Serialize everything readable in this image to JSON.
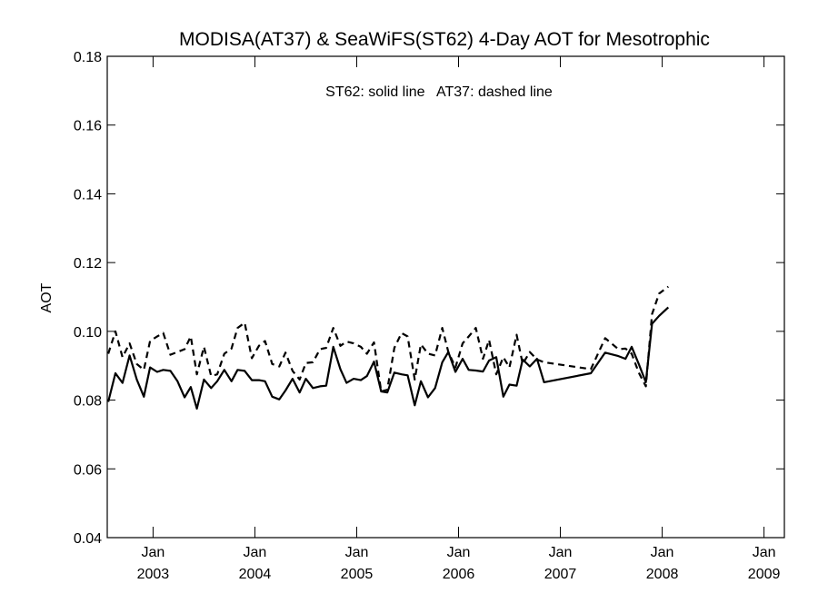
{
  "chart_data": {
    "type": "line",
    "title": "MODISA(AT37) & SeaWiFS(ST62) 4-Day AOT for Mesotrophic",
    "annotation": "ST62: solid line   AT37: dashed line",
    "xlabel": "",
    "ylabel": "AOT",
    "xlim": [
      2002.55,
      2009.2
    ],
    "ylim": [
      0.04,
      0.18
    ],
    "yticks": [
      0.04,
      0.06,
      0.08,
      0.1,
      0.12,
      0.14,
      0.16,
      0.18
    ],
    "ytick_labels": [
      "0.04",
      "0.06",
      "0.08",
      "0.10",
      "0.12",
      "0.14",
      "0.16",
      "0.18"
    ],
    "xticks": [
      {
        "value": 2003.0,
        "month": "Jan",
        "year": "2003"
      },
      {
        "value": 2004.0,
        "month": "Jan",
        "year": "2004"
      },
      {
        "value": 2005.0,
        "month": "Jan",
        "year": "2005"
      },
      {
        "value": 2006.0,
        "month": "Jan",
        "year": "2006"
      },
      {
        "value": 2007.0,
        "month": "Jan",
        "year": "2007"
      },
      {
        "value": 2008.0,
        "month": "Jan",
        "year": "2008"
      },
      {
        "value": 2009.0,
        "month": "Jan",
        "year": "2009"
      }
    ],
    "grid": false,
    "series": [
      {
        "name": "ST62",
        "style": "solid",
        "color": "#000000",
        "points": [
          [
            2002.56,
            0.0795
          ],
          [
            2002.63,
            0.0878
          ],
          [
            2002.7,
            0.085
          ],
          [
            2002.77,
            0.093
          ],
          [
            2002.84,
            0.086
          ],
          [
            2002.91,
            0.081
          ],
          [
            2002.97,
            0.0895
          ],
          [
            2003.04,
            0.0882
          ],
          [
            2003.1,
            0.0888
          ],
          [
            2003.17,
            0.0885
          ],
          [
            2003.24,
            0.0855
          ],
          [
            2003.31,
            0.0808
          ],
          [
            2003.37,
            0.0838
          ],
          [
            2003.43,
            0.0775
          ],
          [
            2003.5,
            0.086
          ],
          [
            2003.57,
            0.0835
          ],
          [
            2003.63,
            0.0855
          ],
          [
            2003.7,
            0.0888
          ],
          [
            2003.77,
            0.0855
          ],
          [
            2003.83,
            0.0888
          ],
          [
            2003.9,
            0.0885
          ],
          [
            2003.97,
            0.0858
          ],
          [
            2004.04,
            0.0858
          ],
          [
            2004.1,
            0.0855
          ],
          [
            2004.17,
            0.081
          ],
          [
            2004.24,
            0.0802
          ],
          [
            2004.3,
            0.0828
          ],
          [
            2004.37,
            0.0862
          ],
          [
            2004.44,
            0.0822
          ],
          [
            2004.5,
            0.0862
          ],
          [
            2004.57,
            0.0835
          ],
          [
            2004.64,
            0.084
          ],
          [
            2004.7,
            0.0842
          ],
          [
            2004.77,
            0.0955
          ],
          [
            2004.84,
            0.089
          ],
          [
            2004.9,
            0.085
          ],
          [
            2004.97,
            0.0862
          ],
          [
            2005.04,
            0.0858
          ],
          [
            2005.1,
            0.087
          ],
          [
            2005.17,
            0.0912
          ],
          [
            2005.24,
            0.0825
          ],
          [
            2005.3,
            0.0822
          ],
          [
            2005.37,
            0.088
          ],
          [
            2005.44,
            0.0875
          ],
          [
            2005.5,
            0.0872
          ],
          [
            2005.57,
            0.0785
          ],
          [
            2005.63,
            0.0855
          ],
          [
            2005.7,
            0.0808
          ],
          [
            2005.77,
            0.0835
          ],
          [
            2005.84,
            0.091
          ],
          [
            2005.9,
            0.094
          ],
          [
            2005.97,
            0.0882
          ],
          [
            2006.04,
            0.092
          ],
          [
            2006.1,
            0.0888
          ],
          [
            2006.17,
            0.0886
          ],
          [
            2006.24,
            0.0883
          ],
          [
            2006.3,
            0.0915
          ],
          [
            2006.37,
            0.0925
          ],
          [
            2006.44,
            0.081
          ],
          [
            2006.5,
            0.0845
          ],
          [
            2006.57,
            0.0842
          ],
          [
            2006.63,
            0.0918
          ],
          [
            2006.7,
            0.0898
          ],
          [
            2006.77,
            0.092
          ],
          [
            2006.84,
            0.0852
          ],
          [
            2007.3,
            0.0878
          ],
          [
            2007.44,
            0.0938
          ],
          [
            2007.57,
            0.0928
          ],
          [
            2007.64,
            0.092
          ],
          [
            2007.7,
            0.0955
          ],
          [
            2007.77,
            0.0905
          ],
          [
            2007.84,
            0.0852
          ],
          [
            2007.9,
            0.1022
          ],
          [
            2007.97,
            0.1045
          ],
          [
            2008.06,
            0.107
          ]
        ]
      },
      {
        "name": "AT37",
        "style": "dashed",
        "color": "#000000",
        "points": [
          [
            2002.56,
            0.0935
          ],
          [
            2002.63,
            0.1
          ],
          [
            2002.7,
            0.0925
          ],
          [
            2002.77,
            0.0965
          ],
          [
            2002.84,
            0.0905
          ],
          [
            2002.91,
            0.0888
          ],
          [
            2002.97,
            0.0972
          ],
          [
            2003.04,
            0.0985
          ],
          [
            2003.1,
            0.0995
          ],
          [
            2003.17,
            0.0932
          ],
          [
            2003.24,
            0.094
          ],
          [
            2003.31,
            0.0948
          ],
          [
            2003.37,
            0.0985
          ],
          [
            2003.43,
            0.0875
          ],
          [
            2003.5,
            0.0955
          ],
          [
            2003.57,
            0.087
          ],
          [
            2003.63,
            0.0875
          ],
          [
            2003.7,
            0.0935
          ],
          [
            2003.77,
            0.095
          ],
          [
            2003.83,
            0.101
          ],
          [
            2003.9,
            0.1025
          ],
          [
            2003.97,
            0.0922
          ],
          [
            2004.04,
            0.0958
          ],
          [
            2004.1,
            0.0972
          ],
          [
            2004.17,
            0.0905
          ],
          [
            2004.24,
            0.0898
          ],
          [
            2004.3,
            0.0938
          ],
          [
            2004.37,
            0.0885
          ],
          [
            2004.44,
            0.086
          ],
          [
            2004.5,
            0.0908
          ],
          [
            2004.57,
            0.091
          ],
          [
            2004.64,
            0.0948
          ],
          [
            2004.7,
            0.0952
          ],
          [
            2004.77,
            0.101
          ],
          [
            2004.84,
            0.0958
          ],
          [
            2004.9,
            0.097
          ],
          [
            2004.97,
            0.0965
          ],
          [
            2005.04,
            0.0955
          ],
          [
            2005.1,
            0.0935
          ],
          [
            2005.17,
            0.0968
          ],
          [
            2005.24,
            0.0825
          ],
          [
            2005.3,
            0.083
          ],
          [
            2005.37,
            0.0952
          ],
          [
            2005.44,
            0.0995
          ],
          [
            2005.5,
            0.0985
          ],
          [
            2005.57,
            0.086
          ],
          [
            2005.63,
            0.0962
          ],
          [
            2005.7,
            0.0935
          ],
          [
            2005.77,
            0.093
          ],
          [
            2005.84,
            0.101
          ],
          [
            2005.9,
            0.094
          ],
          [
            2005.97,
            0.0895
          ],
          [
            2006.04,
            0.0965
          ],
          [
            2006.1,
            0.0985
          ],
          [
            2006.17,
            0.101
          ],
          [
            2006.24,
            0.092
          ],
          [
            2006.3,
            0.0975
          ],
          [
            2006.37,
            0.0875
          ],
          [
            2006.44,
            0.0925
          ],
          [
            2006.5,
            0.0895
          ],
          [
            2006.57,
            0.099
          ],
          [
            2006.63,
            0.0905
          ],
          [
            2006.7,
            0.094
          ],
          [
            2006.77,
            0.0918
          ],
          [
            2006.84,
            0.091
          ],
          [
            2007.3,
            0.089
          ],
          [
            2007.44,
            0.098
          ],
          [
            2007.57,
            0.0948
          ],
          [
            2007.64,
            0.095
          ],
          [
            2007.7,
            0.0935
          ],
          [
            2007.77,
            0.088
          ],
          [
            2007.84,
            0.084
          ],
          [
            2007.9,
            0.105
          ],
          [
            2007.97,
            0.111
          ],
          [
            2008.06,
            0.113
          ]
        ]
      }
    ]
  }
}
